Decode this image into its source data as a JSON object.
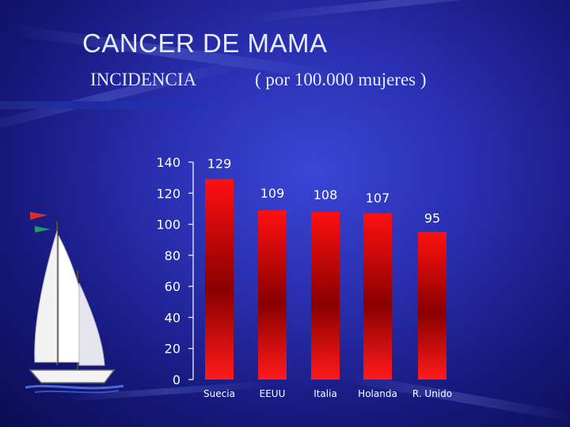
{
  "slide": {
    "title": "CANCER DE MAMA",
    "subtitle_left": "INCIDENCIA",
    "subtitle_right": "( por  100.000 mujeres )"
  },
  "colors": {
    "bar_top": "#ff1010",
    "bar_mid": "#8a0000",
    "bar_bottom": "#ff1a1a",
    "text": "#ffffff"
  },
  "chart_data": {
    "type": "bar",
    "categories": [
      "Suecia",
      "EEUU",
      "Italia",
      "Holanda",
      "R. Unido"
    ],
    "values": [
      129,
      109,
      108,
      107,
      95
    ],
    "ylim": [
      0,
      140
    ],
    "yticks": [
      0,
      20,
      40,
      60,
      80,
      100,
      120,
      140
    ],
    "grid": false,
    "legend": "none"
  },
  "decoration": {
    "icon": "sailboat-icon"
  }
}
